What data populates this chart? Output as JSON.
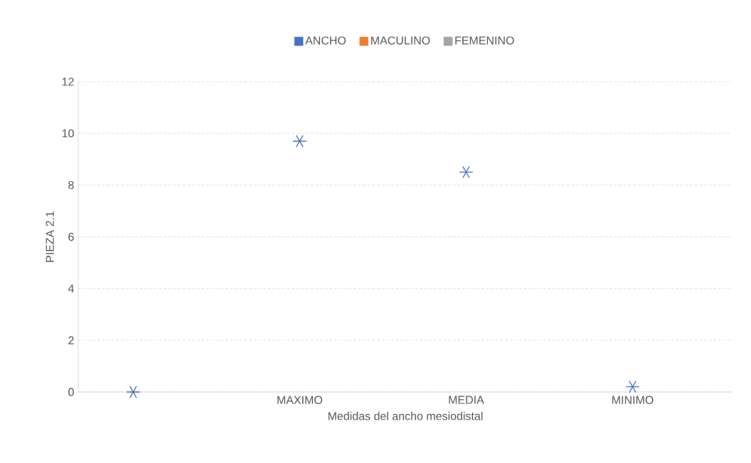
{
  "chart_data": {
    "type": "scatter",
    "xlabel": "Medidas del ancho mesiodistal",
    "ylabel": "PIEZA 2.1",
    "categories": [
      null,
      "MAXIMO",
      "MEDIA",
      "MINIMO"
    ],
    "series": [
      {
        "name": "ANCHO",
        "color": "#4472c4",
        "values": [
          0,
          9.7,
          8.5,
          0.2
        ]
      },
      {
        "name": "MACULINO",
        "color": "#ed7d31",
        "values": [
          null,
          null,
          null,
          null
        ]
      },
      {
        "name": "FEMENINO",
        "color": "#a5a5a5",
        "values": [
          null,
          null,
          null,
          null
        ]
      }
    ],
    "ylim": [
      0,
      12
    ],
    "yticks": [
      0,
      2,
      4,
      6,
      8,
      10,
      12
    ],
    "grid": "y",
    "legend": "top",
    "marker": "cross"
  }
}
